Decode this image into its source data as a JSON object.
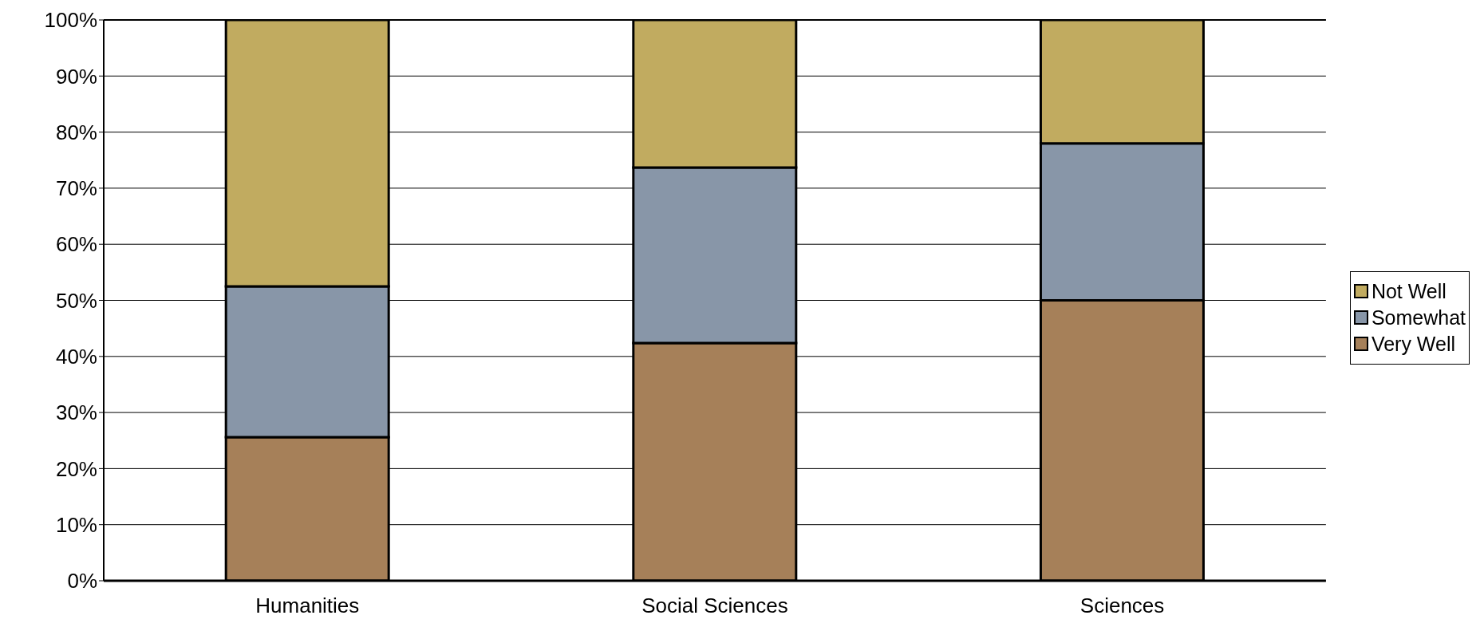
{
  "chart_data": {
    "type": "bar",
    "stacked": true,
    "categories": [
      "Humanities",
      "Social Sciences",
      "Sciences"
    ],
    "series": [
      {
        "name": "Very Well",
        "color": "#a68059",
        "values": [
          25.6,
          42.4,
          50
        ]
      },
      {
        "name": "Somewhat",
        "color": "#8896a8",
        "values": [
          26.9,
          31.3,
          28
        ]
      },
      {
        "name": "Not Well",
        "color": "#c1ab60",
        "values": [
          47.5,
          26.3,
          22
        ]
      }
    ],
    "ylim": [
      0,
      100
    ],
    "yticks": [
      {
        "value": 0,
        "label": "0%"
      },
      {
        "value": 10,
        "label": "10%"
      },
      {
        "value": 20,
        "label": "20%"
      },
      {
        "value": 30,
        "label": "30%"
      },
      {
        "value": 40,
        "label": "40%"
      },
      {
        "value": 50,
        "label": "50%"
      },
      {
        "value": 60,
        "label": "60%"
      },
      {
        "value": 70,
        "label": "70%"
      },
      {
        "value": 80,
        "label": "80%"
      },
      {
        "value": 90,
        "label": "90%"
      },
      {
        "value": 100,
        "label": "100%"
      }
    ],
    "grid": "y",
    "legend": "right"
  }
}
